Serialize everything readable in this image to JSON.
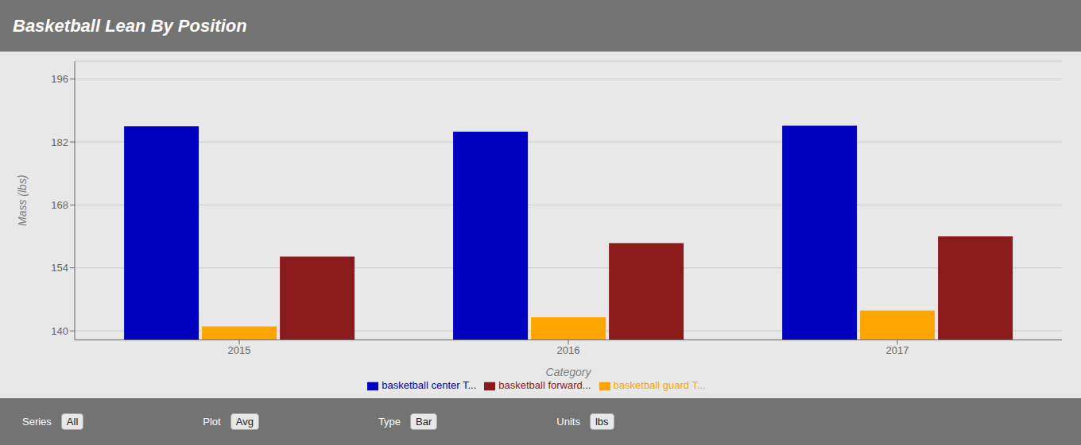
{
  "chart_data": {
    "type": "bar",
    "title": "Basketball Lean By Position",
    "xlabel": "Category",
    "ylabel": "Mass (lbs)",
    "categories": [
      "2015",
      "2016",
      "2017"
    ],
    "series": [
      {
        "name": "basketball center T...",
        "color": "#0000C0",
        "values": [
          185.5,
          184.3,
          185.6
        ]
      },
      {
        "name": "basketball guard T...",
        "color": "#FFA500",
        "values": [
          141.0,
          143.0,
          144.5
        ]
      },
      {
        "name": "basketball forward...",
        "color": "#8B1A1A",
        "values": [
          156.5,
          159.5,
          161.0
        ]
      }
    ],
    "ylim": [
      138,
      200
    ],
    "yticks": [
      140,
      154,
      168,
      182,
      196
    ],
    "grid": true,
    "legend": "bottom",
    "annotations": [
      "Series",
      "All",
      "Plot",
      "Avg",
      "Type",
      "Bar",
      "Units",
      "lbs"
    ]
  }
}
